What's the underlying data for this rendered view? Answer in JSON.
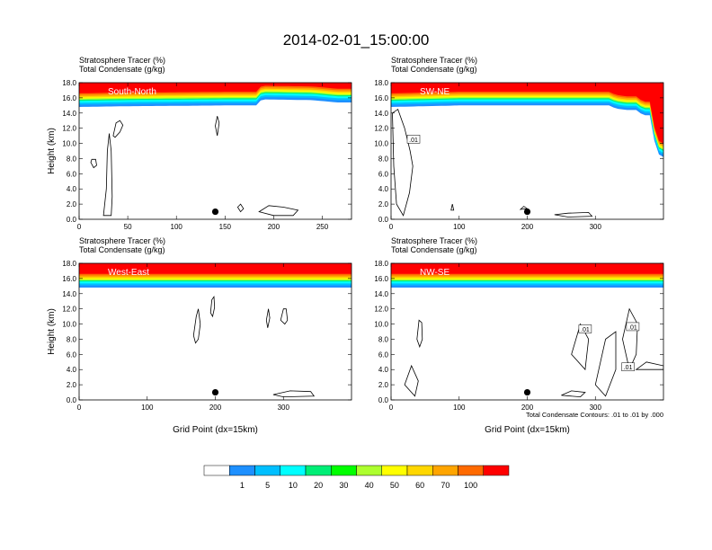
{
  "title": "2014-02-01_15:00:00",
  "colorbar": {
    "levels": [
      "1",
      "5",
      "10",
      "20",
      "30",
      "40",
      "50",
      "60",
      "70",
      "100"
    ],
    "colors": [
      "#ffffff",
      "#1e90ff",
      "#00bfff",
      "#00ffff",
      "#00ee76",
      "#00ff00",
      "#adff2f",
      "#ffff00",
      "#ffd700",
      "#ffa500",
      "#ff6a00",
      "#ff0000"
    ]
  },
  "chart_data": [
    {
      "type": "heatmap",
      "label": "South-North",
      "title_lines": [
        "Stratosphere Tracer   (%)",
        "Total Condensate   (g/kg)"
      ],
      "ylabel": "Height (km)",
      "xlabel": "",
      "xlim": [
        0,
        280
      ],
      "ylim": [
        0,
        18
      ],
      "xticks": [
        "0",
        "50",
        "100",
        "150",
        "200",
        "250"
      ],
      "xtick_values": [
        0,
        50,
        100,
        150,
        200,
        250
      ],
      "yticks": [
        "0.0",
        "2.0",
        "4.0",
        "6.0",
        "8.0",
        "10.0",
        "12.0",
        "14.0",
        "16.0",
        "18.0"
      ],
      "tracer_interface_km": [
        [
          0,
          15.6
        ],
        [
          50,
          15.7
        ],
        [
          150,
          15.8
        ],
        [
          185,
          15.8
        ],
        [
          187,
          16.6
        ],
        [
          240,
          16.5
        ],
        [
          265,
          16.2
        ],
        [
          280,
          16.2
        ]
      ],
      "condensate_contours": [
        [
          [
            25,
            0.5
          ],
          [
            28,
            4
          ],
          [
            29,
            9
          ],
          [
            31,
            11.3
          ],
          [
            33,
            9
          ],
          [
            34,
            3
          ],
          [
            33,
            0.5
          ]
        ],
        [
          [
            35,
            11
          ],
          [
            38,
            12.7
          ],
          [
            42,
            13
          ],
          [
            45,
            12.4
          ],
          [
            42,
            11.5
          ],
          [
            37,
            10.8
          ]
        ],
        [
          [
            12,
            7.5
          ],
          [
            15,
            6.8
          ],
          [
            18,
            7.1
          ],
          [
            17,
            7.9
          ],
          [
            13,
            7.9
          ]
        ],
        [
          [
            140,
            12.3
          ],
          [
            142,
            13.6
          ],
          [
            144,
            12.7
          ],
          [
            142,
            11
          ]
        ],
        [
          [
            163,
            1.6
          ],
          [
            166,
            1
          ],
          [
            169,
            1.4
          ],
          [
            166,
            2
          ]
        ],
        [
          [
            185,
            1
          ],
          [
            195,
            1.8
          ],
          [
            210,
            1.6
          ],
          [
            225,
            1.2
          ],
          [
            220,
            0.5
          ],
          [
            200,
            0.5
          ]
        ]
      ],
      "marker": {
        "x": 140,
        "y": 1.0
      }
    },
    {
      "type": "heatmap",
      "label": "SW-NE",
      "title_lines": [
        "Stratosphere Tracer   (%)",
        "Total Condensate   (g/kg)"
      ],
      "ylabel": "",
      "xlabel": "",
      "xlim": [
        0,
        400
      ],
      "ylim": [
        0,
        18
      ],
      "xticks": [
        "0",
        "100",
        "200",
        "300"
      ],
      "xtick_values": [
        0,
        100,
        200,
        300
      ],
      "yticks": [
        "0.0",
        "2.0",
        "4.0",
        "6.0",
        "8.0",
        "10.0",
        "12.0",
        "14.0",
        "16.0",
        "18.0"
      ],
      "tracer_interface_km": [
        [
          0,
          15.6
        ],
        [
          100,
          15.8
        ],
        [
          320,
          15.8
        ],
        [
          330,
          15.4
        ],
        [
          345,
          15.2
        ],
        [
          360,
          15.2
        ],
        [
          370,
          14.5
        ],
        [
          380,
          14.5
        ],
        [
          385,
          12
        ],
        [
          390,
          9.5
        ],
        [
          400,
          9
        ]
      ],
      "condensate_contours": [
        [
          [
            2,
            14
          ],
          [
            10,
            14.5
          ],
          [
            20,
            12
          ],
          [
            28,
            9
          ],
          [
            32,
            7
          ],
          [
            27,
            3.5
          ],
          [
            18,
            0.5
          ],
          [
            8,
            2
          ],
          [
            4,
            7
          ]
        ],
        [
          [
            88,
            1.2
          ],
          [
            90,
            2
          ],
          [
            92,
            1.2
          ]
        ],
        [
          [
            190,
            1.3
          ],
          [
            195,
            1.7
          ],
          [
            200,
            1.4
          ]
        ],
        [
          [
            240,
            0.6
          ],
          [
            260,
            0.8
          ],
          [
            290,
            0.9
          ],
          [
            295,
            0.4
          ],
          [
            260,
            0.3
          ]
        ]
      ],
      "contour_labels": [
        {
          "text": ".01",
          "x": 33,
          "y": 10.5
        }
      ],
      "marker": {
        "x": 200,
        "y": 1.0
      }
    },
    {
      "type": "heatmap",
      "label": "West-East",
      "title_lines": [
        "Stratosphere Tracer   (%)",
        "Total Condensate   (g/kg)"
      ],
      "ylabel": "Height (km)",
      "xlabel": "Grid Point (dx=15km)",
      "xlim": [
        0,
        400
      ],
      "ylim": [
        0,
        18
      ],
      "xticks": [
        "0",
        "100",
        "200",
        "300"
      ],
      "xtick_values": [
        0,
        100,
        200,
        300
      ],
      "yticks": [
        "0.0",
        "2.0",
        "4.0",
        "6.0",
        "8.0",
        "10.0",
        "12.0",
        "14.0",
        "16.0",
        "18.0"
      ],
      "tracer_interface_km": [
        [
          0,
          15.6
        ],
        [
          400,
          15.6
        ]
      ],
      "condensate_contours": [
        [
          [
            193,
            11.5
          ],
          [
            195,
            13.2
          ],
          [
            198,
            13.6
          ],
          [
            199,
            12.2
          ],
          [
            196,
            11
          ]
        ],
        [
          [
            168,
            8.5
          ],
          [
            172,
            11
          ],
          [
            175,
            12
          ],
          [
            178,
            10
          ],
          [
            175,
            8
          ],
          [
            171,
            7.5
          ]
        ],
        [
          [
            275,
            10.5
          ],
          [
            278,
            12
          ],
          [
            280,
            10.8
          ],
          [
            277,
            9.5
          ]
        ],
        [
          [
            296,
            10.5
          ],
          [
            300,
            12
          ],
          [
            304,
            12
          ],
          [
            306,
            10.5
          ],
          [
            302,
            10
          ]
        ],
        [
          [
            285,
            0.7
          ],
          [
            310,
            1.2
          ],
          [
            340,
            1.1
          ],
          [
            345,
            0.5
          ],
          [
            300,
            0.4
          ]
        ]
      ],
      "marker": {
        "x": 200,
        "y": 1.0
      }
    },
    {
      "type": "heatmap",
      "label": "NW-SE",
      "title_lines": [
        "Stratosphere Tracer   (%)",
        "Total Condensate   (g/kg)"
      ],
      "ylabel": "",
      "xlabel": "Grid Point (dx=15km)",
      "xlim": [
        0,
        400
      ],
      "ylim": [
        0,
        18
      ],
      "xticks": [
        "0",
        "100",
        "200",
        "300"
      ],
      "xtick_values": [
        0,
        100,
        200,
        300
      ],
      "yticks": [
        "0.0",
        "2.0",
        "4.0",
        "6.0",
        "8.0",
        "10.0",
        "12.0",
        "14.0",
        "16.0",
        "18.0"
      ],
      "tracer_interface_km": [
        [
          0,
          15.6
        ],
        [
          400,
          15.6
        ]
      ],
      "condensate_contours": [
        [
          [
            38,
            8
          ],
          [
            41,
            10.5
          ],
          [
            45,
            10.2
          ],
          [
            46,
            8
          ],
          [
            42,
            7
          ]
        ],
        [
          [
            20,
            2
          ],
          [
            30,
            4.5
          ],
          [
            40,
            2.5
          ],
          [
            35,
            0.5
          ]
        ],
        [
          [
            265,
            6
          ],
          [
            278,
            10
          ],
          [
            290,
            8
          ],
          [
            285,
            4
          ]
        ],
        [
          [
            300,
            2
          ],
          [
            315,
            8
          ],
          [
            330,
            9
          ],
          [
            330,
            4
          ],
          [
            315,
            0.5
          ]
        ],
        [
          [
            340,
            8
          ],
          [
            350,
            12
          ],
          [
            362,
            10
          ],
          [
            360,
            6
          ],
          [
            350,
            4
          ]
        ],
        [
          [
            360,
            4
          ],
          [
            375,
            5
          ],
          [
            400,
            4.5
          ],
          [
            400,
            4
          ]
        ],
        [
          [
            250,
            0.6
          ],
          [
            265,
            1.2
          ],
          [
            285,
            1
          ],
          [
            278,
            0.4
          ]
        ]
      ],
      "contour_labels": [
        {
          "text": ".01",
          "x": 285,
          "y": 9.3
        },
        {
          "text": ".01",
          "x": 355,
          "y": 9.6
        },
        {
          "text": ".01",
          "x": 348,
          "y": 4.3
        }
      ],
      "note": "Total Condensate Contours: .01 to .01 by .000",
      "marker": {
        "x": 200,
        "y": 1.0
      }
    }
  ]
}
